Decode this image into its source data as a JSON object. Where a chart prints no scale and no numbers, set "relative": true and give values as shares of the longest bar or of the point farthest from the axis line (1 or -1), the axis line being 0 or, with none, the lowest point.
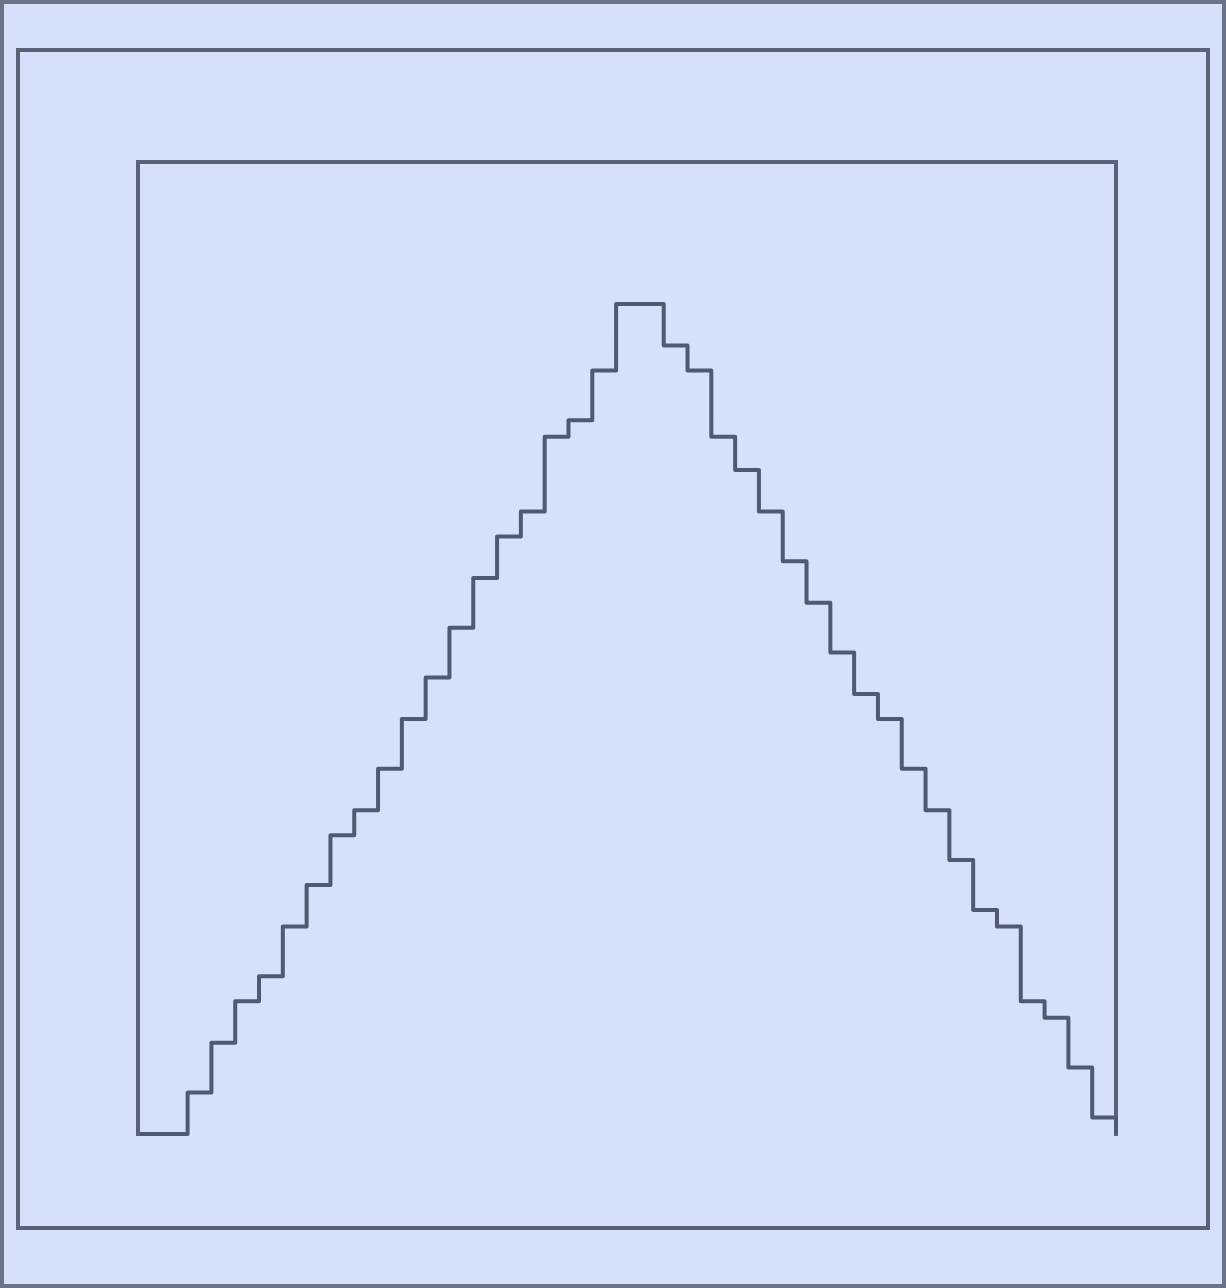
{
  "chart_data": {
    "type": "step",
    "relative": true,
    "tick_labels": false,
    "grid": false,
    "categories": [
      null,
      null,
      null,
      null,
      null,
      null,
      null,
      null,
      null,
      null,
      null,
      null,
      null,
      null,
      null,
      null,
      null,
      null,
      null,
      null,
      null,
      null,
      null,
      null,
      null,
      null,
      null,
      null,
      null,
      null,
      null,
      null,
      null,
      null,
      null,
      null,
      null,
      null,
      null,
      null,
      null,
      null
    ],
    "series": [
      {
        "color": "#4f5a70",
        "values": [
          0,
          0,
          0.05,
          0.11,
          0.16,
          0.19,
          0.25,
          0.3,
          0.36,
          0.39,
          0.44,
          0.5,
          0.55,
          0.61,
          0.67,
          0.72,
          0.75,
          0.84,
          0.86,
          0.92,
          1,
          1,
          0.95,
          0.92,
          0.84,
          0.8,
          0.75,
          0.69,
          0.64,
          0.58,
          0.53,
          0.5,
          0.44,
          0.39,
          0.33,
          0.27,
          0.25,
          0.16,
          0.14,
          0.08,
          0.02,
          0
        ]
      }
    ]
  }
}
